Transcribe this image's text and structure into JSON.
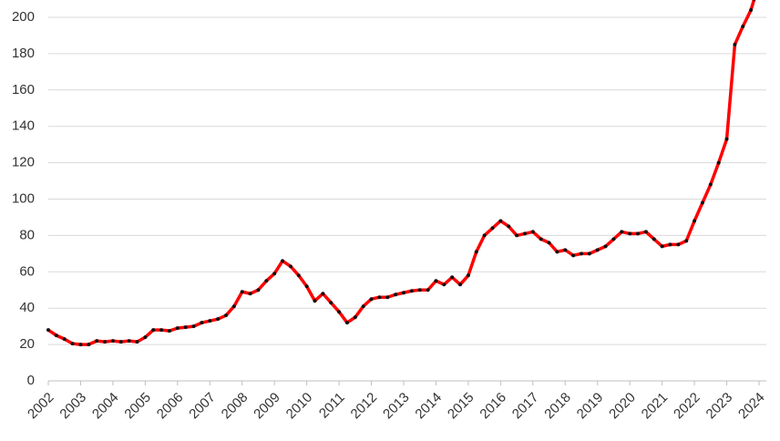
{
  "chart_data": {
    "type": "line",
    "x": [
      2002,
      2002.25,
      2002.5,
      2002.75,
      2003,
      2003.25,
      2003.5,
      2003.75,
      2004,
      2004.25,
      2004.5,
      2004.75,
      2005,
      2005.25,
      2005.5,
      2005.75,
      2006,
      2006.25,
      2006.5,
      2006.75,
      2007,
      2007.25,
      2007.5,
      2007.75,
      2008,
      2008.25,
      2008.5,
      2008.75,
      2009,
      2009.25,
      2009.5,
      2009.75,
      2010,
      2010.25,
      2010.5,
      2010.75,
      2011,
      2011.25,
      2011.5,
      2011.75,
      2012,
      2012.25,
      2012.5,
      2012.75,
      2013,
      2013.25,
      2013.5,
      2013.75,
      2014,
      2014.25,
      2014.5,
      2014.75,
      2015,
      2015.25,
      2015.5,
      2015.75,
      2016,
      2016.25,
      2016.5,
      2016.75,
      2017,
      2017.25,
      2017.5,
      2017.75,
      2018,
      2018.25,
      2018.5,
      2018.75,
      2019,
      2019.25,
      2019.5,
      2019.75,
      2020,
      2020.25,
      2020.5,
      2020.75,
      2021,
      2021.25,
      2021.5,
      2021.75,
      2022,
      2022.25,
      2022.5,
      2022.75,
      2023,
      2023.25,
      2023.5,
      2023.75,
      2023.85
    ],
    "values": [
      28,
      25,
      23,
      20.5,
      20,
      20,
      22,
      21.5,
      22,
      21.5,
      22,
      21.5,
      24,
      28,
      28,
      27.5,
      29,
      29.5,
      30,
      32,
      33,
      34,
      36,
      41,
      49,
      48,
      50,
      55,
      59,
      66,
      63,
      58,
      52,
      44,
      48,
      43,
      38,
      32,
      35,
      41,
      45,
      46,
      46,
      47.5,
      48.5,
      49.5,
      50,
      50,
      55,
      53,
      57,
      53,
      58,
      71,
      80,
      84,
      88,
      85,
      80,
      81,
      82,
      78,
      76,
      71,
      72,
      69,
      70,
      70,
      72,
      74,
      78,
      82,
      81,
      81,
      82,
      78,
      74,
      75,
      75,
      77,
      88,
      98,
      108,
      120,
      133,
      185,
      195,
      204,
      210
    ],
    "color": "#ff0000",
    "marker_color": "#111111",
    "xlim": [
      2002,
      2024
    ],
    "xticks": [
      2002,
      2003,
      2004,
      2005,
      2006,
      2007,
      2008,
      2009,
      2010,
      2011,
      2012,
      2013,
      2014,
      2015,
      2016,
      2017,
      2018,
      2019,
      2020,
      2021,
      2022,
      2023,
      2024
    ],
    "ylim": [
      0,
      200
    ],
    "yticks": [
      0,
      20,
      40,
      60,
      80,
      100,
      120,
      140,
      160,
      180,
      200
    ],
    "grid": true
  }
}
